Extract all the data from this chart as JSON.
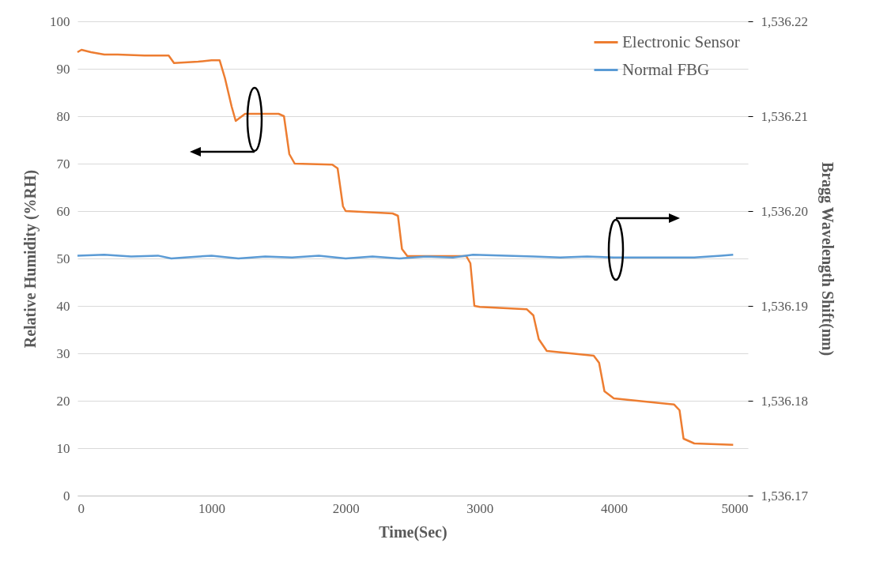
{
  "chart_data": {
    "type": "line",
    "xlabel": "Time(Sec)",
    "ylabel": "Relative Humidity (%RH)",
    "y2label": "Bragg Wavelength Shift(nm)",
    "xlim": [
      0,
      5000
    ],
    "xticks": [
      0,
      1000,
      2000,
      3000,
      4000,
      5000
    ],
    "ylim": [
      0,
      100
    ],
    "yticks": [
      0,
      10,
      20,
      30,
      40,
      50,
      60,
      70,
      80,
      90,
      100
    ],
    "y2lim": [
      1536.17,
      1536.22
    ],
    "y2ticks": [
      {
        "value": 1536.17,
        "label": "1,536.17"
      },
      {
        "value": 1536.18,
        "label": "1,536.18"
      },
      {
        "value": 1536.19,
        "label": "1,536.19"
      },
      {
        "value": 1536.2,
        "label": "1,536.20"
      },
      {
        "value": 1536.21,
        "label": "1,536.21"
      },
      {
        "value": 1536.22,
        "label": "1,536.22"
      }
    ],
    "grid": "y",
    "legend": "top right",
    "line_style": "solid",
    "series": [
      {
        "name": "Electronic Sensor",
        "color": "#ed7d31",
        "x": [
          0,
          30,
          100,
          200,
          300,
          500,
          680,
          720,
          900,
          1000,
          1060,
          1100,
          1150,
          1180,
          1250,
          1500,
          1540,
          1580,
          1620,
          1900,
          1940,
          1980,
          2000,
          2350,
          2390,
          2420,
          2460,
          2900,
          2930,
          2960,
          3000,
          3350,
          3400,
          3440,
          3500,
          3850,
          3890,
          3930,
          4000,
          4450,
          4490,
          4520,
          4600,
          4890
        ],
        "values": [
          93.5,
          94,
          93.5,
          93,
          93,
          92.8,
          92.8,
          91.2,
          91.5,
          91.8,
          91.8,
          88,
          82,
          79,
          80.5,
          80.5,
          80,
          72,
          70,
          69.8,
          69,
          61,
          60,
          59.5,
          59,
          52,
          50.5,
          50.5,
          49,
          40,
          39.8,
          39.3,
          38,
          33,
          30.5,
          29.5,
          28,
          22,
          20.5,
          19.2,
          18,
          12,
          11,
          10.7
        ]
      },
      {
        "name": "Normal FBG",
        "color": "#5b9bd5",
        "axis": "y2",
        "x": [
          0,
          200,
          400,
          600,
          700,
          800,
          1000,
          1200,
          1400,
          1600,
          1800,
          2000,
          2200,
          2400,
          2600,
          2800,
          2950,
          3200,
          3400,
          3600,
          3800,
          4000,
          4200,
          4400,
          4600,
          4800,
          4890
        ],
        "values": [
          1536.1953,
          1536.1954,
          1536.1952,
          1536.1953,
          1536.195,
          1536.1951,
          1536.1953,
          1536.195,
          1536.1952,
          1536.1951,
          1536.1953,
          1536.195,
          1536.1952,
          1536.195,
          1536.1952,
          1536.1951,
          1536.1954,
          1536.1953,
          1536.1952,
          1536.1951,
          1536.1952,
          1536.1951,
          1536.1951,
          1536.1951,
          1536.1951,
          1536.1953,
          1536.1954
        ]
      }
    ]
  }
}
